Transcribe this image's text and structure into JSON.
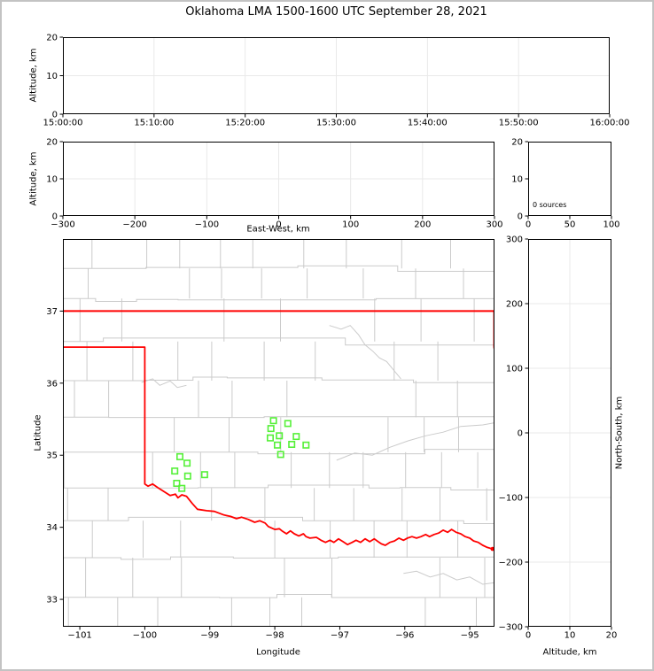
{
  "figure": {
    "title": "Oklahoma LMA 1500-1600 UTC September 28, 2021",
    "colors": {
      "state_border": "#ff0000",
      "station": "#55f038",
      "county": "#cbcbcb",
      "river": "#cbcbcb",
      "grid": "#e9e9e9",
      "axis": "#000000",
      "frame": "#c3c3c3"
    }
  },
  "chart_data": [
    {
      "name": "time-altitude-panel",
      "type": "scatter",
      "ylabel": "Altitude, km",
      "xlim": [
        0,
        60
      ],
      "xtick_values": [
        0,
        10,
        20,
        30,
        40,
        50,
        60
      ],
      "xtick_labels": [
        "15:00:00",
        "15:10:00",
        "15:20:00",
        "15:30:00",
        "15:40:00",
        "15:50:00",
        "16:00:00"
      ],
      "ylim": [
        0,
        20
      ],
      "ytick_values": [
        0,
        10,
        20
      ],
      "ytick_labels": [
        "0",
        "10",
        "20"
      ],
      "grid": true,
      "points": []
    },
    {
      "name": "eastwest-altitude-panel",
      "type": "scatter",
      "xlabel": "East-West, km",
      "ylabel": "Altitude, km",
      "xlim": [
        -300,
        300
      ],
      "xtick_values": [
        -300,
        -200,
        -100,
        0,
        100,
        200,
        300
      ],
      "xtick_labels": [
        "−300",
        "−200",
        "−100",
        "0",
        "100",
        "200",
        "300"
      ],
      "ylim": [
        0,
        20
      ],
      "ytick_values": [
        0,
        10,
        20
      ],
      "ytick_labels": [
        "0",
        "10",
        "20"
      ],
      "grid": true,
      "points": []
    },
    {
      "name": "source-count-histogram",
      "type": "bar",
      "annotation": "0 sources",
      "xlim": [
        0,
        100
      ],
      "xtick_values": [
        0,
        50,
        100
      ],
      "xtick_labels": [
        "0",
        "50",
        "100"
      ],
      "ylim": [
        0,
        20
      ],
      "ytick_values": [
        0,
        10,
        20
      ],
      "ytick_labels": [
        "0",
        "10",
        "20"
      ],
      "grid": false,
      "values": []
    },
    {
      "name": "map-panel",
      "type": "scatter",
      "xlabel": "Longitude",
      "ylabel": "Latitude",
      "xlim": [
        -101.26,
        -94.62
      ],
      "xtick_values": [
        -101,
        -100,
        -99,
        -98,
        -97,
        -96,
        -95
      ],
      "xtick_labels": [
        "−101",
        "−100",
        "−99",
        "−98",
        "−97",
        "−96",
        "−95"
      ],
      "ylim": [
        32.62,
        38.0
      ],
      "ytick_values": [
        33,
        34,
        35,
        36,
        37
      ],
      "ytick_labels": [
        "33",
        "34",
        "35",
        "36",
        "37"
      ],
      "grid": false,
      "stations": [
        [
          -98.02,
          35.48
        ],
        [
          -97.8,
          35.44
        ],
        [
          -98.06,
          35.37
        ],
        [
          -97.93,
          35.27
        ],
        [
          -98.07,
          35.24
        ],
        [
          -97.67,
          35.26
        ],
        [
          -97.96,
          35.14
        ],
        [
          -97.74,
          35.15
        ],
        [
          -97.52,
          35.14
        ],
        [
          -97.91,
          35.01
        ],
        [
          -99.46,
          34.98
        ],
        [
          -99.35,
          34.89
        ],
        [
          -99.54,
          34.78
        ],
        [
          -99.34,
          34.71
        ],
        [
          -99.08,
          34.73
        ],
        [
          -99.51,
          34.61
        ],
        [
          -99.43,
          34.54
        ]
      ],
      "state_border": {
        "north": [
          [
            -101.26,
            37.0
          ],
          [
            -94.62,
            37.0
          ]
        ],
        "east": [
          [
            -94.627,
            37.0
          ],
          [
            -94.627,
            36.5
          ],
          [
            -94.46,
            35.6
          ]
        ],
        "west_and_red_river": [
          [
            -101.26,
            36.5
          ],
          [
            -100.0,
            36.5
          ],
          [
            -100.0,
            34.6
          ],
          [
            -99.95,
            34.57
          ],
          [
            -99.88,
            34.6
          ],
          [
            -99.8,
            34.55
          ],
          [
            -99.73,
            34.51
          ],
          [
            -99.61,
            34.44
          ],
          [
            -99.53,
            34.46
          ],
          [
            -99.49,
            34.41
          ],
          [
            -99.43,
            34.45
          ],
          [
            -99.36,
            34.43
          ],
          [
            -99.27,
            34.33
          ],
          [
            -99.19,
            34.25
          ],
          [
            -99.05,
            34.23
          ],
          [
            -98.93,
            34.22
          ],
          [
            -98.78,
            34.17
          ],
          [
            -98.68,
            34.15
          ],
          [
            -98.59,
            34.12
          ],
          [
            -98.51,
            34.14
          ],
          [
            -98.41,
            34.11
          ],
          [
            -98.31,
            34.07
          ],
          [
            -98.23,
            34.09
          ],
          [
            -98.15,
            34.06
          ],
          [
            -98.1,
            34.01
          ],
          [
            -98.0,
            33.97
          ],
          [
            -97.93,
            33.98
          ],
          [
            -97.89,
            33.95
          ],
          [
            -97.82,
            33.91
          ],
          [
            -97.76,
            33.95
          ],
          [
            -97.7,
            33.91
          ],
          [
            -97.63,
            33.88
          ],
          [
            -97.56,
            33.91
          ],
          [
            -97.52,
            33.87
          ],
          [
            -97.46,
            33.85
          ],
          [
            -97.36,
            33.86
          ],
          [
            -97.29,
            33.82
          ],
          [
            -97.22,
            33.79
          ],
          [
            -97.15,
            33.82
          ],
          [
            -97.09,
            33.79
          ],
          [
            -97.02,
            33.84
          ],
          [
            -96.95,
            33.8
          ],
          [
            -96.88,
            33.76
          ],
          [
            -96.81,
            33.79
          ],
          [
            -96.75,
            33.82
          ],
          [
            -96.68,
            33.79
          ],
          [
            -96.61,
            33.84
          ],
          [
            -96.54,
            33.8
          ],
          [
            -96.47,
            33.84
          ],
          [
            -96.41,
            33.8
          ],
          [
            -96.36,
            33.77
          ],
          [
            -96.3,
            33.75
          ],
          [
            -96.23,
            33.79
          ],
          [
            -96.16,
            33.81
          ],
          [
            -96.09,
            33.85
          ],
          [
            -96.02,
            33.82
          ],
          [
            -95.96,
            33.85
          ],
          [
            -95.89,
            33.87
          ],
          [
            -95.82,
            33.85
          ],
          [
            -95.75,
            33.87
          ],
          [
            -95.68,
            33.9
          ],
          [
            -95.62,
            33.87
          ],
          [
            -95.55,
            33.9
          ],
          [
            -95.48,
            33.92
          ],
          [
            -95.41,
            33.96
          ],
          [
            -95.34,
            33.93
          ],
          [
            -95.28,
            33.97
          ],
          [
            -95.21,
            33.93
          ],
          [
            -95.14,
            33.91
          ],
          [
            -95.07,
            33.87
          ],
          [
            -95.0,
            33.85
          ],
          [
            -94.94,
            33.81
          ],
          [
            -94.87,
            33.79
          ],
          [
            -94.8,
            33.75
          ],
          [
            -94.73,
            33.72
          ],
          [
            -94.65,
            33.7
          ]
        ],
        "river_end_dot": [
          -94.65,
          33.7
        ]
      },
      "rivers": [
        [
          [
            -97.05,
            34.93
          ],
          [
            -96.77,
            35.03
          ],
          [
            -96.5,
            35.0
          ],
          [
            -96.23,
            35.11
          ],
          [
            -95.95,
            35.2
          ],
          [
            -95.68,
            35.27
          ],
          [
            -95.41,
            35.32
          ],
          [
            -95.14,
            35.4
          ],
          [
            -94.8,
            35.42
          ],
          [
            -94.62,
            35.45
          ]
        ],
        [
          [
            -97.16,
            36.8
          ],
          [
            -96.98,
            36.75
          ],
          [
            -96.84,
            36.8
          ],
          [
            -96.71,
            36.67
          ],
          [
            -96.61,
            36.53
          ],
          [
            -96.5,
            36.45
          ],
          [
            -96.39,
            36.35
          ],
          [
            -96.28,
            36.3
          ],
          [
            -96.17,
            36.18
          ],
          [
            -96.06,
            36.06
          ]
        ],
        [
          [
            -96.02,
            33.36
          ],
          [
            -95.82,
            33.39
          ],
          [
            -95.61,
            33.31
          ],
          [
            -95.41,
            33.36
          ],
          [
            -95.2,
            33.27
          ],
          [
            -95.0,
            33.31
          ],
          [
            -94.8,
            33.21
          ],
          [
            -94.62,
            33.23
          ]
        ],
        [
          [
            -100.05,
            36.01
          ],
          [
            -99.88,
            36.06
          ],
          [
            -99.77,
            35.97
          ],
          [
            -99.61,
            36.03
          ],
          [
            -99.5,
            35.94
          ],
          [
            -99.36,
            35.97
          ]
        ]
      ]
    },
    {
      "name": "northsouth-altitude-panel",
      "type": "scatter",
      "xlabel": "Altitude, km",
      "ylabel": "North-South, km",
      "xlim": [
        0,
        20
      ],
      "xtick_values": [
        0,
        10,
        20
      ],
      "xtick_labels": [
        "0",
        "10",
        "20"
      ],
      "ylim": [
        -300,
        300
      ],
      "ytick_values": [
        -300,
        -200,
        -100,
        0,
        100,
        200,
        300
      ],
      "ytick_labels": [
        "−300",
        "−200",
        "−100",
        "0",
        "100",
        "200",
        "300"
      ],
      "grid": true,
      "points": []
    }
  ]
}
